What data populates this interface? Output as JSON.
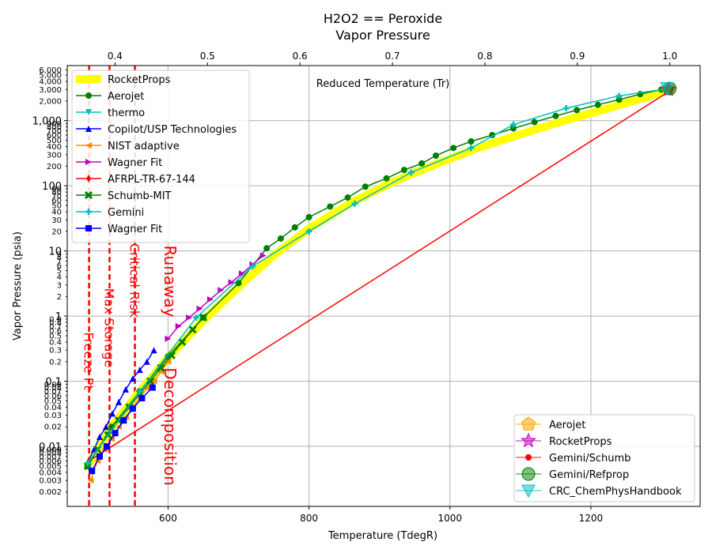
{
  "chart_data": {
    "type": "line",
    "title": "H2O2 == Peroxide",
    "subtitle": "Vapor Pressure",
    "xlabel": "Temperature (TdegR)",
    "ylabel": "Vapor Pressure (psia)",
    "top_axis_label": "Reduced Temperature (Tr)",
    "xlim": [
      457,
      1355
    ],
    "ylim": [
      0.0012,
      7000
    ],
    "y_scale": "log",
    "grid": true,
    "x_ticks": [
      "600",
      "800",
      "1000",
      "1200"
    ],
    "top_ticks": [
      "0.4",
      "0.5",
      "0.6",
      "0.7",
      "0.8",
      "0.9",
      "1.0"
    ],
    "y_major_ticks": [
      "0.01",
      "0.1",
      "1",
      "10",
      "100",
      "1,000"
    ],
    "y_minor_ticks": [
      "0.002",
      "0.003",
      "0.004",
      "0.005",
      "0.006",
      "0.007",
      "0.008",
      "0.009",
      "0.02",
      "0.03",
      "0.04",
      "0.05",
      "0.06",
      "0.07",
      "0.08",
      "0.09",
      "0.2",
      "0.3",
      "0.4",
      "0.5",
      "0.6",
      "0.7",
      "0.8",
      "0.9",
      "2",
      "3",
      "4",
      "5",
      "6",
      "7",
      "8",
      "9",
      "20",
      "30",
      "40",
      "50",
      "60",
      "70",
      "80",
      "90",
      "200",
      "300",
      "400",
      "500",
      "600",
      "700",
      "800",
      "900",
      "2,000",
      "3,000",
      "4,000",
      "5,000",
      "6,000"
    ],
    "vlines": [
      {
        "x": 488,
        "label": "Freeze Pt",
        "color": "#ff0000"
      },
      {
        "x": 517,
        "label": "Max Storage",
        "color": "#ff0000"
      },
      {
        "x": 553,
        "label": "Critical Risk",
        "color": "#ff0000"
      }
    ],
    "annotations": [
      {
        "text": "Runaway",
        "x": 610,
        "y": 10
      },
      {
        "text": "Decomposition",
        "x": 610,
        "y": 0.2
      }
    ],
    "series": [
      {
        "name": "RocketProps",
        "color": "#ffff00",
        "marker": "none",
        "x": [
          486,
          520,
          560,
          600,
          650,
          700,
          750,
          800,
          860,
          920,
          980,
          1040,
          1100,
          1160,
          1220,
          1280,
          1310
        ],
        "y": [
          0.005,
          0.02,
          0.07,
          0.23,
          0.85,
          2.8,
          8.5,
          22,
          55,
          115,
          215,
          380,
          620,
          980,
          1500,
          2300,
          3000
        ]
      },
      {
        "name": "Aerojet",
        "color": "#008000",
        "marker": "circle",
        "x": [
          486,
          520,
          560,
          600,
          650,
          700,
          740,
          760,
          780,
          800,
          830,
          855,
          880,
          910,
          935,
          960,
          980,
          1005,
          1030,
          1060,
          1090,
          1120,
          1150,
          1180,
          1210,
          1240,
          1270,
          1300
        ],
        "y": [
          0.005,
          0.02,
          0.07,
          0.24,
          0.95,
          3.2,
          11,
          15.5,
          23,
          33,
          48,
          66,
          97,
          130,
          175,
          220,
          290,
          380,
          480,
          600,
          760,
          950,
          1180,
          1450,
          1750,
          2100,
          2550,
          3000
        ]
      },
      {
        "name": "thermo",
        "color": "#00bfbf",
        "marker": "triangle-down",
        "x": [
          1310
        ],
        "y": [
          3100
        ]
      },
      {
        "name": "Copilot/USP Technologies",
        "color": "#0000ff",
        "marker": "triangle-up",
        "x": [
          487,
          495,
          503,
          512,
          521,
          530,
          540,
          550,
          560,
          570,
          580
        ],
        "y": [
          0.006,
          0.009,
          0.014,
          0.02,
          0.032,
          0.048,
          0.075,
          0.11,
          0.15,
          0.2,
          0.3
        ]
      },
      {
        "name": "NIST adaptive",
        "color": "#ff8c00",
        "marker": "triangle-left",
        "x": [
          490,
          500,
          510,
          520,
          530,
          540,
          550,
          560,
          570,
          580,
          590,
          600
        ],
        "y": [
          0.003,
          0.006,
          0.009,
          0.013,
          0.02,
          0.028,
          0.04,
          0.055,
          0.078,
          0.1,
          0.14,
          0.2
        ]
      },
      {
        "name": "Wagner Fit",
        "color": "#bf00bf",
        "marker": "triangle-right",
        "x": [
          600,
          615,
          630,
          645,
          660,
          675,
          690,
          705,
          720,
          735
        ],
        "y": [
          0.45,
          0.7,
          0.95,
          1.3,
          1.8,
          2.5,
          3.3,
          4.5,
          6.2,
          8.5
        ]
      },
      {
        "name": "AFRPL-TR-67-144",
        "color": "#ff0000",
        "marker": "diamond",
        "x": [
          488,
          1315
        ],
        "y": [
          0.006,
          3000
        ]
      },
      {
        "name": "Schumb-MIT",
        "color": "#008000",
        "marker": "x",
        "x": [
          486,
          500,
          515,
          530,
          545,
          560,
          575,
          590,
          605,
          620,
          635,
          650
        ],
        "y": [
          0.005,
          0.009,
          0.015,
          0.025,
          0.04,
          0.065,
          0.1,
          0.16,
          0.25,
          0.4,
          0.62,
          0.95
        ]
      },
      {
        "name": "Gemini",
        "color": "#00bfbf",
        "marker": "plus",
        "x": [
          486,
          560,
          640,
          720,
          800,
          865,
          945,
          1030,
          1090,
          1165,
          1240,
          1310
        ],
        "y": [
          0.0055,
          0.07,
          0.95,
          5.8,
          20,
          53,
          160,
          380,
          870,
          1550,
          2400,
          3100
        ]
      },
      {
        "name": "Wagner Fit",
        "color": "#0000ff",
        "marker": "square",
        "x": [
          492,
          503,
          513,
          525,
          537,
          550,
          563,
          578
        ],
        "y": [
          0.0042,
          0.007,
          0.01,
          0.016,
          0.025,
          0.038,
          0.055,
          0.08
        ]
      }
    ],
    "points": [
      {
        "name": "Aerojet",
        "color": "#ffa500",
        "marker": "pentagon",
        "x": 1310,
        "y": 3050
      },
      {
        "name": "RocketProps",
        "color": "#bf00bf",
        "marker": "star",
        "x": 1310,
        "y": 3000
      },
      {
        "name": "Gemini/Schumb",
        "color": "#ff0000",
        "marker": "small-circle",
        "x": 1310,
        "y": 3050
      },
      {
        "name": "Gemini/Refprop",
        "color": "#008000",
        "marker": "big-circle",
        "x": 1312,
        "y": 3100
      },
      {
        "name": "CRC_ChemPhysHandbook",
        "color": "#00bfbf",
        "marker": "big-triangle-down",
        "x": 1308,
        "y": 3150
      }
    ],
    "legend_upper_left": [
      "RocketProps",
      "Aerojet",
      "thermo",
      "Copilot/USP Technologies",
      "NIST adaptive",
      "Wagner Fit",
      "AFRPL-TR-67-144",
      "Schumb-MIT",
      "Gemini",
      "Wagner Fit"
    ],
    "legend_lower_right": [
      "Aerojet",
      "RocketProps",
      "Gemini/Schumb",
      "Gemini/Refprop",
      "CRC_ChemPhysHandbook"
    ]
  }
}
